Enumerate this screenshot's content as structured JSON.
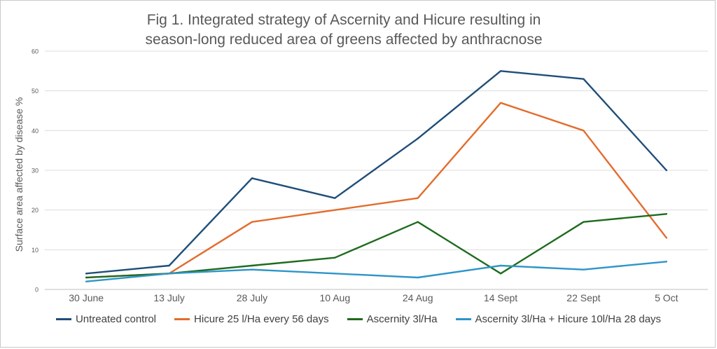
{
  "chart_data": {
    "type": "line",
    "title_line1": "Fig 1. Integrated strategy of Ascernity and Hicure resulting in",
    "title_line2": "season-long reduced area of greens affected by anthracnose",
    "xlabel": "",
    "ylabel": "Surface area affected by disease %",
    "ylim": [
      0,
      60
    ],
    "yticks": [
      "0",
      "10",
      "20",
      "30",
      "40",
      "50",
      "60"
    ],
    "categories": [
      "30 June",
      "13 July",
      "28 July",
      "10 Aug",
      "24 Aug",
      "14 Sept",
      "22 Sept",
      "5 Oct"
    ],
    "grid": true,
    "legend_position": "bottom",
    "series": [
      {
        "name": "Untreated control",
        "color": "#1f4e79",
        "values": [
          4,
          6,
          28,
          23,
          38,
          55,
          53,
          30
        ]
      },
      {
        "name": "Hicure 25 l/Ha every 56 days",
        "color": "#e36c2c",
        "values": [
          3,
          4,
          17,
          20,
          23,
          47,
          40,
          13
        ]
      },
      {
        "name": "Ascernity  3l/Ha",
        "color": "#1e6b1e",
        "values": [
          3,
          4,
          6,
          8,
          17,
          4,
          17,
          19
        ]
      },
      {
        "name": "Ascernity 3l/Ha + Hicure 10l/Ha 28 days",
        "color": "#2e95c8",
        "values": [
          2,
          4,
          5,
          4,
          3,
          6,
          5,
          7
        ]
      }
    ]
  }
}
